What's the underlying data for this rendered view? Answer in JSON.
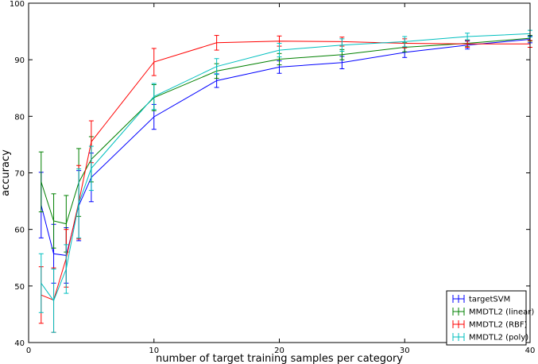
{
  "chart_data": {
    "type": "line",
    "xlabel": "number of target training samples per category",
    "ylabel": "accuracy",
    "xlim": [
      0,
      40
    ],
    "ylim": [
      40,
      100
    ],
    "xticks": [
      0,
      10,
      20,
      30,
      40
    ],
    "yticks": [
      40,
      50,
      60,
      70,
      80,
      90,
      100
    ],
    "grid": false,
    "legend": "bottom-right",
    "x": [
      1,
      2,
      3,
      4,
      5,
      10,
      15,
      20,
      25,
      30,
      35,
      40
    ],
    "series": [
      {
        "name": "targetSVM",
        "color": "#0000ff",
        "values": [
          64.3,
          55.7,
          55.4,
          64.2,
          69.2,
          79.9,
          86.3,
          88.7,
          89.5,
          91.3,
          92.6,
          93.6
        ],
        "errors": [
          5.8,
          5.2,
          4.9,
          6.2,
          4.3,
          2.2,
          1.2,
          1.1,
          1.1,
          0.9,
          0.7,
          0.6
        ]
      },
      {
        "name": "MMDTL2 (linear)",
        "color": "#008000",
        "values": [
          68.4,
          61.5,
          61.0,
          68.3,
          72.4,
          83.3,
          88.0,
          90.1,
          90.9,
          92.2,
          92.9,
          93.8
        ],
        "errors": [
          5.3,
          4.8,
          5.0,
          6.0,
          4.0,
          2.3,
          1.3,
          1.0,
          0.9,
          0.8,
          0.6,
          0.5
        ]
      },
      {
        "name": "MMDTL2 (RBF)",
        "color": "#ff0000",
        "values": [
          48.4,
          47.5,
          54.9,
          64.8,
          75.5,
          89.6,
          93.0,
          93.3,
          93.2,
          92.9,
          92.8,
          92.8
        ],
        "errors": [
          5.0,
          5.7,
          5.1,
          6.5,
          3.7,
          2.4,
          1.3,
          0.9,
          0.8,
          0.8,
          0.6,
          0.6
        ]
      },
      {
        "name": "MMDTL2 (poly)",
        "color": "#00bfbf",
        "values": [
          50.5,
          47.4,
          53.0,
          64.6,
          70.8,
          83.5,
          88.8,
          91.7,
          92.6,
          93.2,
          94.1,
          94.6
        ],
        "errors": [
          5.2,
          5.6,
          4.3,
          6.1,
          3.9,
          2.3,
          1.4,
          1.2,
          1.1,
          0.9,
          0.6,
          0.6
        ]
      }
    ]
  }
}
